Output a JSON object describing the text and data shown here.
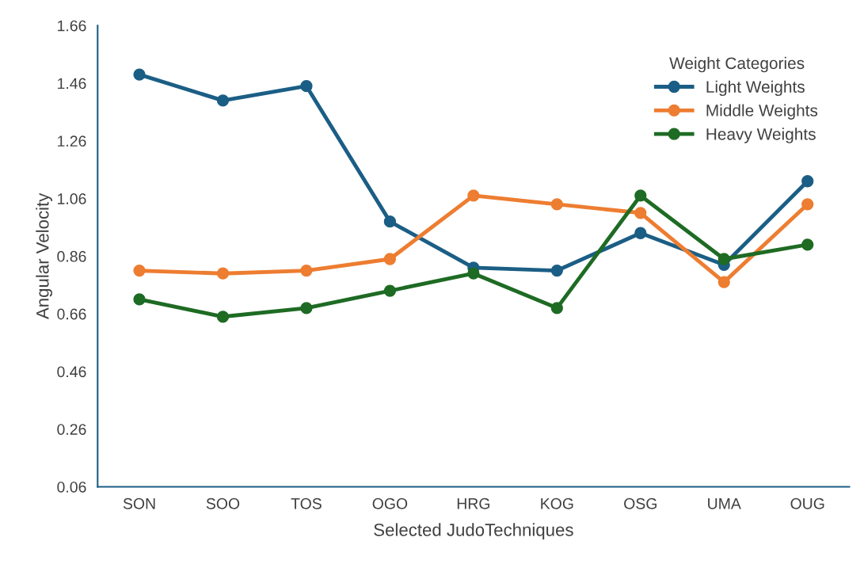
{
  "chart_data": {
    "type": "line",
    "xlabel": "Selected JudoTechniques",
    "ylabel": "Angular Velocity",
    "legend_title": "Weight Categories",
    "categories": [
      "SON",
      "SOO",
      "TOS",
      "OGO",
      "HRG",
      "KOG",
      "OSG",
      "UMA",
      "OUG"
    ],
    "series": [
      {
        "name": "Light Weights",
        "color": "#1b5e85",
        "values": [
          1.49,
          1.4,
          1.45,
          0.98,
          0.82,
          0.81,
          0.94,
          0.83,
          1.12
        ]
      },
      {
        "name": "Middle Weights",
        "color": "#ed7d31",
        "values": [
          0.81,
          0.8,
          0.81,
          0.85,
          1.07,
          1.04,
          1.01,
          0.77,
          1.04
        ]
      },
      {
        "name": "Heavy Weights",
        "color": "#1e6b24",
        "values": [
          0.71,
          0.65,
          0.68,
          0.74,
          0.8,
          0.68,
          1.07,
          0.85,
          0.9
        ]
      }
    ],
    "ylim": [
      0.06,
      1.66
    ],
    "yticks": [
      {
        "value": 0.06,
        "label": "0.06"
      },
      {
        "value": 0.26,
        "label": "0.26"
      },
      {
        "value": 0.46,
        "label": "0.46"
      },
      {
        "value": 0.66,
        "label": "0.66"
      },
      {
        "value": 0.86,
        "label": "0.86"
      },
      {
        "value": 1.06,
        "label": "1.06"
      },
      {
        "value": 1.26,
        "label": "1.26"
      },
      {
        "value": 1.46,
        "label": "1.46"
      },
      {
        "value": 1.66,
        "label": "1.66"
      }
    ],
    "grid": false,
    "legend": "top right",
    "marker": "circle",
    "line_style": "solid"
  }
}
